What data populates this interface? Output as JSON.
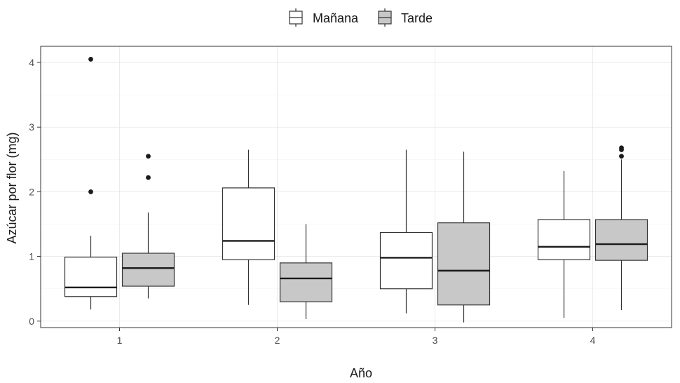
{
  "chart_data": {
    "type": "boxplot",
    "xlabel": "Año",
    "ylabel": "Azúcar por flor (mg)",
    "categories": [
      "1",
      "2",
      "3",
      "4"
    ],
    "ylim": [
      -0.1,
      4.25
    ],
    "yticks": [
      0,
      1,
      2,
      3,
      4
    ],
    "grid": true,
    "legend_position": "top",
    "series": [
      {
        "name": "Mañana",
        "color": "#ffffff",
        "boxes": [
          {
            "category": "1",
            "whisker_low": 0.18,
            "q1": 0.38,
            "median": 0.52,
            "q3": 0.99,
            "whisker_high": 1.32,
            "outliers": [
              2.0,
              4.05
            ]
          },
          {
            "category": "2",
            "whisker_low": 0.25,
            "q1": 0.95,
            "median": 1.24,
            "q3": 2.06,
            "whisker_high": 2.65,
            "outliers": []
          },
          {
            "category": "3",
            "whisker_low": 0.12,
            "q1": 0.5,
            "median": 0.98,
            "q3": 1.37,
            "whisker_high": 2.65,
            "outliers": []
          },
          {
            "category": "4",
            "whisker_low": 0.05,
            "q1": 0.95,
            "median": 1.15,
            "q3": 1.57,
            "whisker_high": 2.32,
            "outliers": []
          }
        ]
      },
      {
        "name": "Tarde",
        "color": "#c8c8c8",
        "boxes": [
          {
            "category": "1",
            "whisker_low": 0.35,
            "q1": 0.54,
            "median": 0.82,
            "q3": 1.05,
            "whisker_high": 1.68,
            "outliers": [
              2.22,
              2.55
            ]
          },
          {
            "category": "2",
            "whisker_low": 0.03,
            "q1": 0.3,
            "median": 0.66,
            "q3": 0.9,
            "whisker_high": 1.5,
            "outliers": []
          },
          {
            "category": "3",
            "whisker_low": -0.02,
            "q1": 0.25,
            "median": 0.78,
            "q3": 1.52,
            "whisker_high": 2.62,
            "outliers": []
          },
          {
            "category": "4",
            "whisker_low": 0.17,
            "q1": 0.94,
            "median": 1.19,
            "q3": 1.57,
            "whisker_high": 2.5,
            "outliers": [
              2.55,
              2.65,
              2.68
            ]
          }
        ]
      }
    ]
  }
}
